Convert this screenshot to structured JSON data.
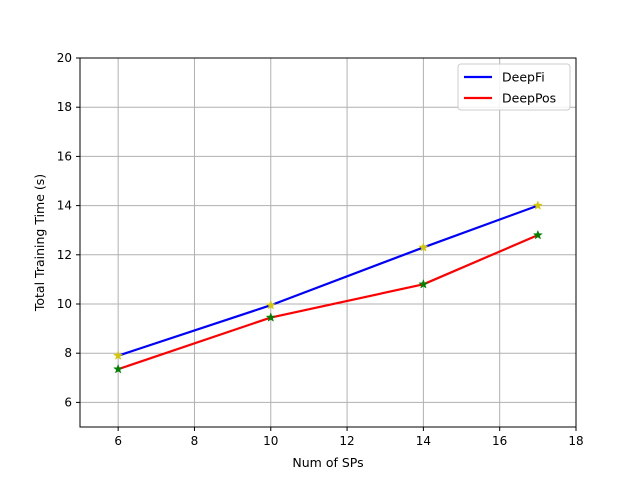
{
  "chart_data": {
    "type": "line",
    "title": "",
    "xlabel": "Num of SPs",
    "ylabel": "Total Training Time (s)",
    "xlim": [
      5,
      18
    ],
    "ylim": [
      5,
      20
    ],
    "xticks": [
      6,
      8,
      10,
      12,
      14,
      16,
      18
    ],
    "yticks": [
      6,
      8,
      10,
      12,
      14,
      16,
      18,
      20
    ],
    "grid": true,
    "legend_position": "top-right",
    "series": [
      {
        "name": "DeepFi",
        "color": "#0000ff",
        "marker": "star",
        "marker_color": "#d4c800",
        "x": [
          6,
          10,
          14,
          17
        ],
        "y": [
          7.9,
          9.95,
          12.3,
          14.0
        ]
      },
      {
        "name": "DeepPos",
        "color": "#ff0000",
        "marker": "star",
        "marker_color": "#008000",
        "x": [
          6,
          10,
          14,
          17
        ],
        "y": [
          7.35,
          9.45,
          10.8,
          12.8
        ]
      }
    ]
  }
}
